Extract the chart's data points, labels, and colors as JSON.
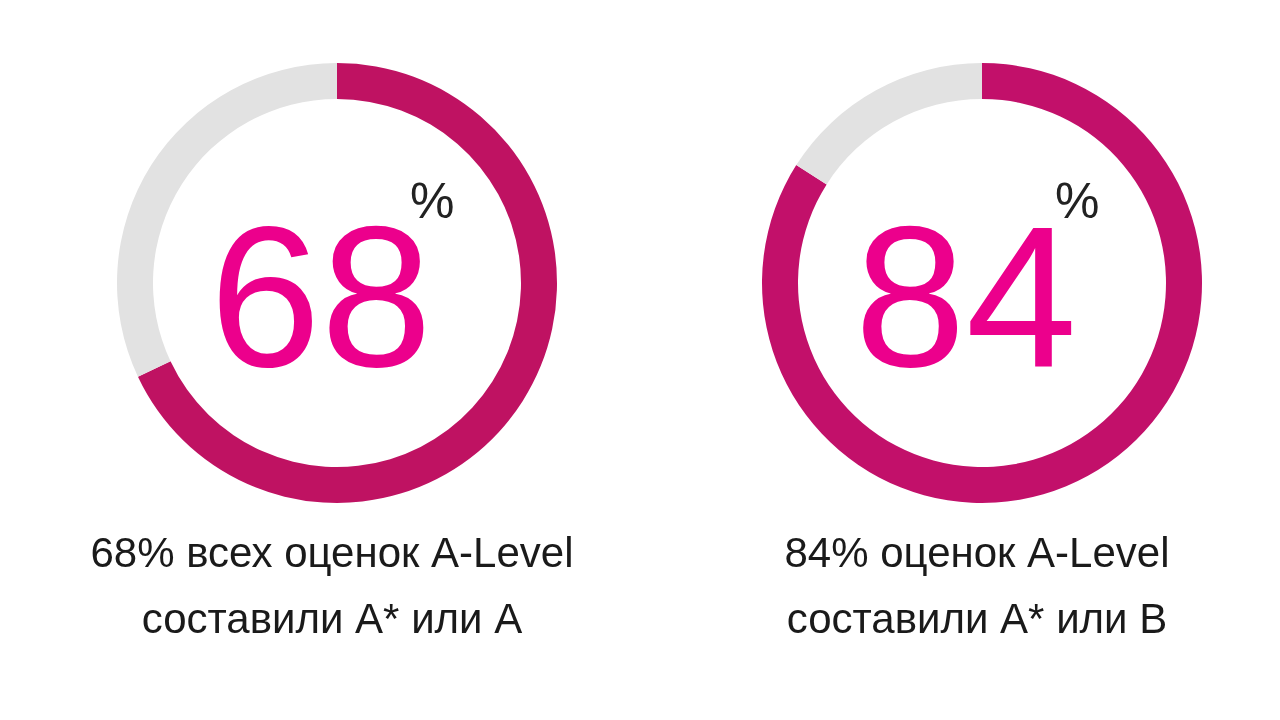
{
  "chart_data": [
    {
      "type": "donut",
      "categories": [
        null,
        null
      ],
      "values": [
        68,
        32
      ],
      "colors": [
        "#bf1262",
        "#e2e2e2"
      ],
      "value_labels": [
        "68$^{%}$",
        null
      ],
      "annotations": [
        "68% всех оценок A-Level\nсоставили A* или A"
      ]
    },
    {
      "type": "donut",
      "categories": [
        null,
        null
      ],
      "values": [
        84,
        16
      ],
      "colors": [
        "#c2106a",
        "#e2e2e2"
      ],
      "value_labels": [
        "84$^{%}$",
        null
      ],
      "annotations": [
        "84% оценок A-Level\nсоставили A* или B"
      ]
    }
  ]
}
